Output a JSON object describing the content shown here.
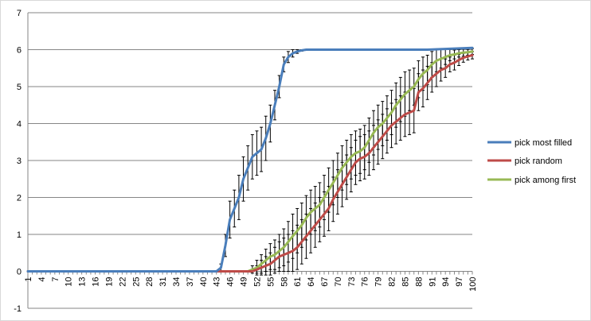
{
  "chart_data": {
    "type": "line",
    "title": "",
    "xlabel": "",
    "ylabel": "",
    "ylim": [
      -1,
      7
    ],
    "yticks": [
      -1,
      0,
      1,
      2,
      3,
      4,
      5,
      6,
      7
    ],
    "x_range": [
      1,
      100
    ],
    "x_tick_labels": [
      "1",
      "4",
      "7",
      "10",
      "13",
      "16",
      "19",
      "22",
      "25",
      "28",
      "31",
      "34",
      "37",
      "40",
      "43",
      "46",
      "49",
      "52",
      "55",
      "58",
      "61",
      "64",
      "67",
      "70",
      "73",
      "76",
      "79",
      "82",
      "85",
      "88",
      "91",
      "94",
      "97",
      "100"
    ],
    "grid": "horizontal",
    "legend_position": "right",
    "error_bars": true,
    "series": [
      {
        "name": "pick most filled",
        "color": "#4a7ebb",
        "x": [
          1,
          43,
          44,
          45,
          46,
          47,
          48,
          49,
          50,
          51,
          52,
          53,
          54,
          55,
          56,
          57,
          58,
          59,
          60,
          61,
          62,
          63,
          64,
          65,
          70,
          80,
          90,
          100
        ],
        "values": [
          0,
          0,
          0.1,
          0.7,
          1.4,
          1.7,
          2.0,
          2.5,
          2.8,
          3.1,
          3.2,
          3.3,
          3.6,
          4.0,
          4.5,
          5.0,
          5.6,
          5.8,
          5.9,
          5.95,
          5.98,
          6.0,
          6.0,
          6.0,
          6.0,
          6.0,
          6.0,
          6.05
        ],
        "err": [
          0,
          0,
          0.1,
          0.3,
          0.5,
          0.5,
          0.6,
          0.6,
          0.6,
          0.6,
          0.6,
          0.6,
          0.6,
          0.5,
          0.4,
          0.3,
          0.2,
          0.15,
          0.1,
          0.05,
          0.02,
          0,
          0,
          0,
          0,
          0,
          0,
          0
        ]
      },
      {
        "name": "pick random",
        "color": "#be4b48",
        "x": [
          1,
          51,
          52,
          53,
          54,
          55,
          56,
          57,
          58,
          59,
          60,
          61,
          62,
          63,
          64,
          65,
          66,
          67,
          68,
          69,
          70,
          71,
          72,
          73,
          74,
          75,
          76,
          77,
          78,
          79,
          80,
          81,
          82,
          83,
          84,
          85,
          86,
          87,
          88,
          89,
          90,
          91,
          92,
          93,
          94,
          95,
          96,
          97,
          98,
          99,
          100
        ],
        "values": [
          0,
          0,
          0.05,
          0.1,
          0.15,
          0.2,
          0.3,
          0.4,
          0.45,
          0.5,
          0.55,
          0.65,
          0.8,
          0.95,
          1.1,
          1.25,
          1.4,
          1.55,
          1.7,
          1.95,
          2.15,
          2.35,
          2.55,
          2.75,
          2.95,
          3.05,
          3.1,
          3.2,
          3.35,
          3.5,
          3.65,
          3.8,
          3.95,
          4.05,
          4.15,
          4.25,
          4.3,
          4.35,
          4.85,
          4.95,
          5.1,
          5.25,
          5.35,
          5.45,
          5.5,
          5.6,
          5.65,
          5.72,
          5.78,
          5.82,
          5.85
        ],
        "err": [
          0,
          0,
          0.1,
          0.2,
          0.25,
          0.3,
          0.35,
          0.4,
          0.45,
          0.5,
          0.55,
          0.6,
          0.6,
          0.6,
          0.6,
          0.6,
          0.6,
          0.6,
          0.6,
          0.6,
          0.6,
          0.6,
          0.6,
          0.6,
          0.6,
          0.6,
          0.6,
          0.6,
          0.6,
          0.6,
          0.6,
          0.6,
          0.6,
          0.6,
          0.6,
          0.6,
          0.6,
          0.6,
          0.5,
          0.5,
          0.45,
          0.4,
          0.35,
          0.3,
          0.25,
          0.2,
          0.2,
          0.15,
          0.12,
          0.1,
          0.1
        ]
      },
      {
        "name": "pick among first",
        "color": "#98b954",
        "x": [
          1,
          50,
          51,
          52,
          53,
          54,
          55,
          56,
          57,
          58,
          59,
          60,
          61,
          62,
          63,
          64,
          65,
          66,
          67,
          68,
          69,
          70,
          71,
          72,
          73,
          74,
          75,
          76,
          77,
          78,
          79,
          80,
          81,
          82,
          83,
          84,
          85,
          86,
          87,
          88,
          89,
          90,
          91,
          92,
          93,
          94,
          95,
          96,
          97,
          98,
          99,
          100
        ],
        "values": [
          0,
          0,
          0.05,
          0.1,
          0.2,
          0.3,
          0.4,
          0.45,
          0.55,
          0.65,
          0.8,
          0.95,
          1.1,
          1.25,
          1.45,
          1.6,
          1.7,
          1.8,
          2.0,
          2.2,
          2.4,
          2.6,
          2.8,
          2.95,
          3.1,
          3.2,
          3.25,
          3.35,
          3.55,
          3.75,
          3.9,
          4.0,
          4.15,
          4.3,
          4.5,
          4.65,
          4.8,
          4.9,
          5.0,
          5.2,
          5.35,
          5.45,
          5.6,
          5.7,
          5.75,
          5.8,
          5.85,
          5.87,
          5.9,
          5.92,
          5.93,
          5.95
        ],
        "err": [
          0,
          0,
          0.1,
          0.2,
          0.25,
          0.3,
          0.35,
          0.4,
          0.45,
          0.5,
          0.55,
          0.6,
          0.6,
          0.6,
          0.6,
          0.6,
          0.6,
          0.6,
          0.6,
          0.6,
          0.6,
          0.6,
          0.6,
          0.6,
          0.6,
          0.6,
          0.6,
          0.6,
          0.6,
          0.6,
          0.6,
          0.6,
          0.6,
          0.6,
          0.6,
          0.6,
          0.6,
          0.55,
          0.5,
          0.5,
          0.45,
          0.4,
          0.35,
          0.3,
          0.25,
          0.2,
          0.15,
          0.12,
          0.1,
          0.1,
          0.08,
          0.08
        ]
      }
    ]
  }
}
